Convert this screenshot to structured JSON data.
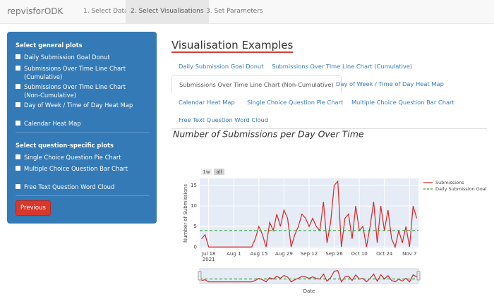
{
  "navbar": {
    "brand": "repvisforODK",
    "tabs": [
      "1. Select Data",
      "2. Select Visualisations",
      "3. Set Parameters"
    ],
    "active_tab": 1
  },
  "sidebar": {
    "sections": [
      {
        "title": "Select general plots",
        "items": [
          "Daily Submission Goal Donut",
          "Submissions Over Time Line Chart (Cumulative)",
          "Submissions Over Time Line Chart (Non-Cumulative)",
          "Day of Week / Time of Day Heat Map",
          "Calendar Heat Map"
        ]
      },
      {
        "title": "Select question-specific plots",
        "items": [
          "Single Choice Question Pie Chart",
          "Multiple Choice Question Bar Chart",
          "Free Text Question Word Cloud"
        ]
      }
    ],
    "button": "Previous"
  },
  "main": {
    "title": "Visualisation Examples",
    "tabs": [
      [
        "Daily Submission Goal Donut",
        "Submissions Over Time Line Chart (Cumulative)"
      ],
      [
        "Submissions Over Time Line Chart (Non-Cumulative)",
        "Day of Week / Time of Day Heat Map"
      ],
      [
        "Calendar Heat Map",
        "Single Choice Question Pie Chart",
        "Multiple Choice Question Bar Chart"
      ],
      [
        "Free Text Question Word Cloud"
      ]
    ],
    "active_tab": [
      1,
      0
    ]
  },
  "chart_data": {
    "type": "line",
    "title": "Number of Submissions per Day Over Time",
    "x_label": "Date",
    "y_label": "Number of Submissions",
    "range_buttons": [
      "1w",
      "all"
    ],
    "grid": true,
    "legend": "right",
    "x": [
      "2021-07-14",
      "2021-07-16",
      "2021-07-18",
      "2021-07-20",
      "2021-07-22",
      "2021-07-24",
      "2021-07-26",
      "2021-07-28",
      "2021-07-30",
      "2021-08-01",
      "2021-08-03",
      "2021-08-05",
      "2021-08-07",
      "2021-08-09",
      "2021-08-11",
      "2021-08-13",
      "2021-08-15",
      "2021-08-17",
      "2021-08-19",
      "2021-08-21",
      "2021-08-23",
      "2021-08-25",
      "2021-08-27",
      "2021-08-29",
      "2021-08-31",
      "2021-09-02",
      "2021-09-04",
      "2021-09-06",
      "2021-09-08",
      "2021-09-10",
      "2021-09-12",
      "2021-09-14",
      "2021-09-16",
      "2021-09-18",
      "2021-09-20",
      "2021-09-22",
      "2021-09-24",
      "2021-09-26",
      "2021-09-28",
      "2021-09-30",
      "2021-10-02",
      "2021-10-04",
      "2021-10-06",
      "2021-10-08",
      "2021-10-10",
      "2021-10-12",
      "2021-10-14",
      "2021-10-16",
      "2021-10-18",
      "2021-10-20",
      "2021-10-22",
      "2021-10-24",
      "2021-10-26",
      "2021-10-28",
      "2021-10-30",
      "2021-11-01",
      "2021-11-03",
      "2021-11-05",
      "2021-11-07",
      "2021-11-09",
      "2021-11-11"
    ],
    "series": [
      {
        "name": "Submissions",
        "color": "#d62728",
        "values": [
          2,
          3,
          0,
          0,
          0,
          0,
          0,
          0,
          0,
          0,
          0,
          0,
          0,
          0,
          0,
          2,
          5,
          3,
          0,
          6,
          4,
          8,
          5,
          9,
          7,
          0,
          3,
          5,
          8,
          7,
          5,
          7,
          5,
          4,
          11,
          1,
          6,
          15,
          16,
          0,
          7,
          8,
          2,
          10,
          4,
          5,
          0,
          5,
          11,
          1,
          10,
          4,
          9,
          2,
          0,
          4,
          1,
          5,
          0,
          10,
          7
        ]
      },
      {
        "name": "Daily Submission Goal",
        "color": "#2ca02c",
        "dashed": true,
        "value": 4
      }
    ],
    "xlim": [
      "2021-07-13",
      "2021-11-12"
    ],
    "xticks": [
      {
        "value": "2021-07-18",
        "label": "Jul 18",
        "year": "2021"
      },
      {
        "value": "2021-08-01",
        "label": "Aug 1"
      },
      {
        "value": "2021-08-15",
        "label": "Aug 15"
      },
      {
        "value": "2021-08-29",
        "label": "Aug 29"
      },
      {
        "value": "2021-09-12",
        "label": "Sep 12"
      },
      {
        "value": "2021-09-26",
        "label": "Sep 26"
      },
      {
        "value": "2021-10-10",
        "label": "Oct 10"
      },
      {
        "value": "2021-10-24",
        "label": "Oct 24"
      },
      {
        "value": "2021-11-07",
        "label": "Nov 7"
      }
    ],
    "ylim": [
      -0.3,
      16.7
    ],
    "yticks": [
      0,
      5,
      10,
      15
    ]
  }
}
